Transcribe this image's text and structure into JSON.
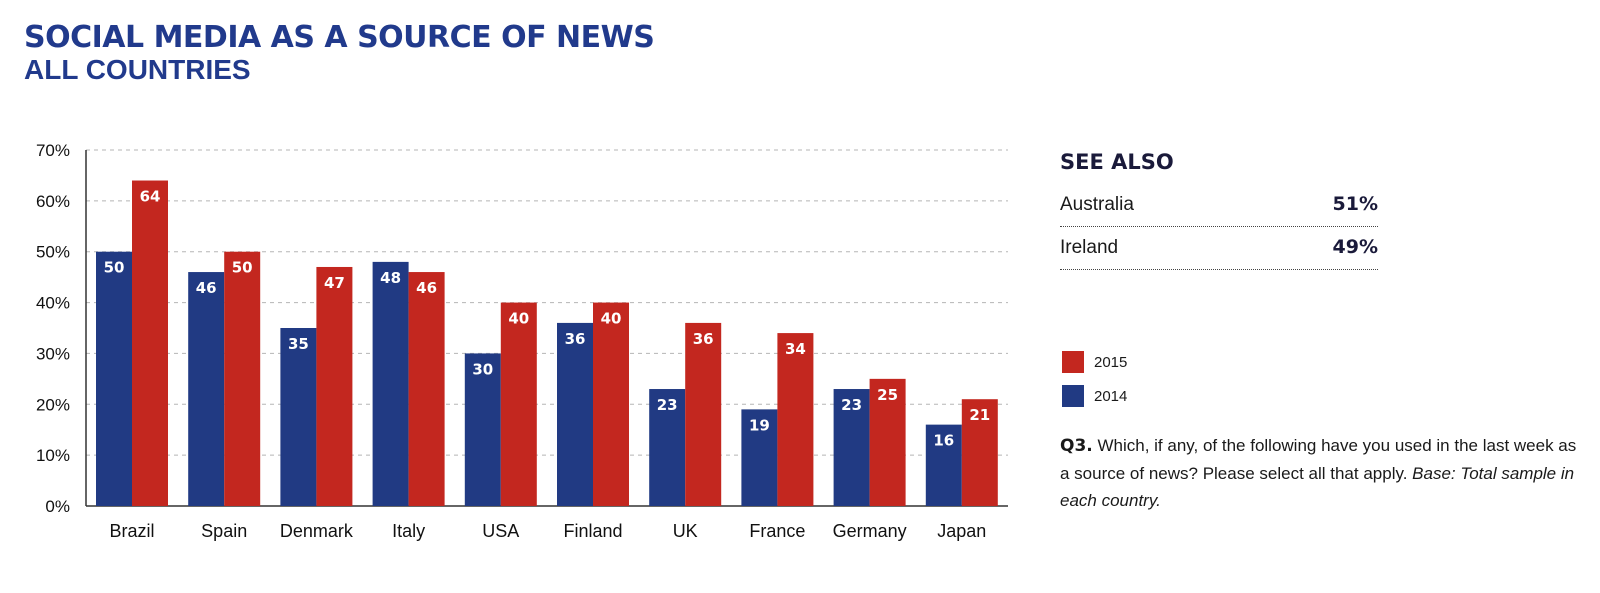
{
  "header": {
    "title": "SOCIAL MEDIA AS A SOURCE OF NEWS",
    "subtitle": "ALL COUNTRIES"
  },
  "chart_data": {
    "type": "bar",
    "title": "SOCIAL MEDIA AS A SOURCE OF NEWS",
    "subtitle": "ALL COUNTRIES",
    "categories": [
      "Brazil",
      "Spain",
      "Denmark",
      "Italy",
      "USA",
      "Finland",
      "UK",
      "France",
      "Germany",
      "Japan"
    ],
    "series": [
      {
        "name": "2014",
        "color": "#213a83",
        "values": [
          50,
          46,
          35,
          48,
          30,
          36,
          23,
          19,
          23,
          16
        ]
      },
      {
        "name": "2015",
        "color": "#c3271f",
        "values": [
          64,
          50,
          47,
          46,
          40,
          40,
          36,
          34,
          25,
          21
        ]
      }
    ],
    "y_ticks": [
      "0%",
      "10%",
      "20%",
      "30%",
      "40%",
      "50%",
      "60%",
      "70%"
    ],
    "ylim": [
      0,
      70
    ],
    "grid": true,
    "legend_position": "right"
  },
  "see_also": {
    "title": "SEE ALSO",
    "rows": [
      {
        "label": "Australia",
        "value": "51%"
      },
      {
        "label": "Ireland",
        "value": "49%"
      }
    ]
  },
  "legend": {
    "items": [
      {
        "label": "2015",
        "color": "#c3271f"
      },
      {
        "label": "2014",
        "color": "#213a83"
      }
    ]
  },
  "footnote": {
    "question_label": "Q3.",
    "question_text": " Which, if any, of the following have you used in the last week as a source of news? Please select all that apply. ",
    "base_text": "Base: Total sample in each country."
  }
}
